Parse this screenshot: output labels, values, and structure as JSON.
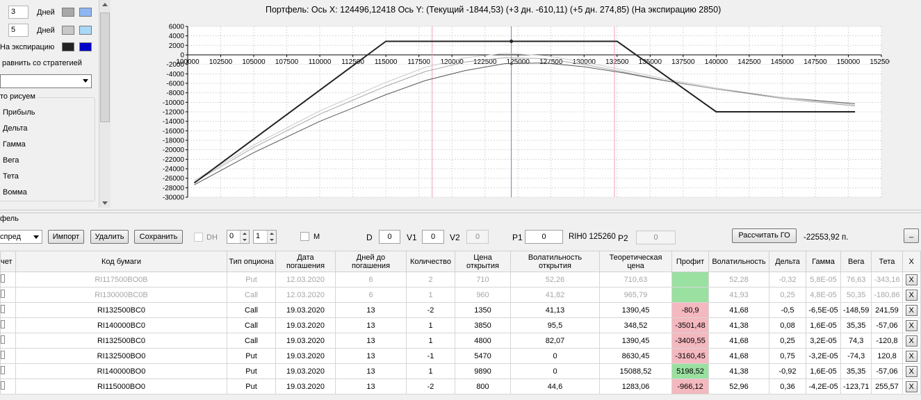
{
  "left_panel": {
    "rows": [
      {
        "value": "3",
        "label": "Дней",
        "swatch1": "#a8a8a8",
        "swatch2": "#8fb6f2"
      },
      {
        "value": "5",
        "label": "Дней",
        "swatch1": "#c8c8c8",
        "swatch2": "#a9d8f8"
      }
    ],
    "expiry_label": "На экспирацию",
    "expiry_swatch1": "#222222",
    "expiry_swatch2": "#0000c8",
    "compare_label": "равнить со стратегией",
    "group_title": "то рисуем",
    "draw_items": [
      "Прибыль",
      "Дельта",
      "Гамма",
      "Вега",
      "Тета",
      "Вомма"
    ]
  },
  "chart": {
    "title": "Портфель: Ось X: 124496,12418 Ось Y:  (Текущий -1844,53)  (+3 дн. -610,11)  (+5 дн. 274,85)  (На экспирацию 2850)"
  },
  "chart_data": {
    "type": "line",
    "title": "Портфель: Ось X: 124496,12418 Ось Y:  (Текущий -1844,53)  (+3 дн. -610,11)  (+5 дн. 274,85)  (На экспирацию 2850)",
    "xlim": [
      100000,
      152500
    ],
    "ylim": [
      -30000,
      6000
    ],
    "x_ticks": [
      "100000",
      "102500",
      "105000",
      "107500",
      "110000",
      "112500",
      "115000",
      "117500",
      "120000",
      "122500",
      "125000",
      "127500",
      "130000",
      "132500",
      "135000",
      "137500",
      "140000",
      "142500",
      "145000",
      "147500",
      "150000",
      "152500"
    ],
    "y_ticks": [
      "6000",
      "4000",
      "2000",
      "0",
      "-2000",
      "-4000",
      "-6000",
      "-8000",
      "-10000",
      "-12000",
      "-14000",
      "-16000",
      "-18000",
      "-20000",
      "-22000",
      "-24000",
      "-26000",
      "-28000",
      "-30000"
    ],
    "grid": true,
    "vertical_lines": [
      {
        "x": 118500,
        "color": "#f0a0b0"
      },
      {
        "x": 124496,
        "color": "#7080a8"
      },
      {
        "x": 132300,
        "color": "#f0a0b0"
      }
    ],
    "series": [
      {
        "color": "#222222",
        "width": 2,
        "x": [
          100500,
          115000,
          132500,
          140000,
          150500
        ],
        "y": [
          -27000,
          2850,
          2850,
          -12000,
          -12000
        ]
      },
      {
        "color": "#c8c8c8",
        "width": 1,
        "x": [
          100500,
          105000,
          110000,
          115000,
          118000,
          121000,
          124000,
          127000,
          130000,
          133000,
          136000,
          140000,
          145000,
          150500
        ],
        "y": [
          -26500,
          -19000,
          -11800,
          -5800,
          -2600,
          -600,
          300,
          -150,
          -1500,
          -3200,
          -5000,
          -7000,
          -9000,
          -10600
        ]
      },
      {
        "color": "#a8a8a8",
        "width": 1,
        "x": [
          100500,
          105000,
          110000,
          115000,
          118000,
          121000,
          124000,
          127000,
          130000,
          133000,
          136000,
          140000,
          145000,
          150500
        ],
        "y": [
          -26800,
          -19500,
          -12500,
          -6600,
          -3500,
          -1500,
          -600,
          -800,
          -2000,
          -3600,
          -5300,
          -7200,
          -9200,
          -10800
        ]
      },
      {
        "color": "#555555",
        "width": 1,
        "x": [
          100500,
          105000,
          110000,
          115000,
          118000,
          121000,
          124000,
          127000,
          130000,
          133000,
          136000,
          140000,
          145000,
          150500
        ],
        "y": [
          -27400,
          -20600,
          -14000,
          -8400,
          -5400,
          -3300,
          -1850,
          -1700,
          -2500,
          -3800,
          -5400,
          -7200,
          -9000,
          -10300
        ]
      }
    ]
  },
  "toolbar": {
    "tab_label": "фель",
    "strategy_value": "спред",
    "import_label": "Импорт",
    "delete_label": "Удалить",
    "save_label": "Сохранить",
    "dh_label": "DH",
    "spin1": "0",
    "spin2": "1",
    "m_label": "M",
    "d_label": "D",
    "d_value": "0",
    "v1_label": "V1",
    "v1_value": "0",
    "v2_label": "V2",
    "v2_value": "0",
    "p1_label": "P1",
    "p1_value": "0",
    "instrument_label": "RIH0 125260",
    "p2_label": "P2",
    "p2_value": "0",
    "calc_label": "Рассчитать ГО",
    "go_value": "-22553,92 п.",
    "collapse_label": "_"
  },
  "table": {
    "columns": [
      "чет",
      "Код бумаги",
      "Тип опциона",
      "Дата погашения",
      "Дней до погашения",
      "Количество",
      "Цена открытия",
      "Волатильность открытия",
      "Теоретическая цена",
      "Профит",
      "Волатильность",
      "Дельта",
      "Гамма",
      "Вега",
      "Тета",
      "X"
    ],
    "rows": [
      {
        "dim": true,
        "code": "RI117500BO0B",
        "type": "Put",
        "date": "12.03.2020",
        "days": "6",
        "qty": "2",
        "open": "710",
        "vol_open": "52,26",
        "theo": "710,63",
        "profit": "",
        "profit_state": "pos",
        "vol": "52,28",
        "delta": "-0,32",
        "gamma": "5,8E-05",
        "vega": "76,63",
        "theta": "-343,16"
      },
      {
        "dim": true,
        "code": "RI130000BC0B",
        "type": "Call",
        "date": "12.03.2020",
        "days": "6",
        "qty": "1",
        "open": "960",
        "vol_open": "41,82",
        "theo": "965,79",
        "profit": "",
        "profit_state": "pos",
        "vol": "41,93",
        "delta": "0,25",
        "gamma": "4,8E-05",
        "vega": "50,35",
        "theta": "-180,86"
      },
      {
        "dim": false,
        "code": "RI132500BC0",
        "type": "Call",
        "date": "19.03.2020",
        "days": "13",
        "qty": "-2",
        "open": "1350",
        "vol_open": "41,13",
        "theo": "1390,45",
        "profit": "-80,9",
        "profit_state": "neg",
        "vol": "41,68",
        "delta": "-0,5",
        "gamma": "-6,5E-05",
        "vega": "-148,59",
        "theta": "241,59"
      },
      {
        "dim": false,
        "code": "RI140000BC0",
        "type": "Call",
        "date": "19.03.2020",
        "days": "13",
        "qty": "1",
        "open": "3850",
        "vol_open": "95,5",
        "theo": "348,52",
        "profit": "-3501,48",
        "profit_state": "neg",
        "vol": "41,38",
        "delta": "0,08",
        "gamma": "1,6E-05",
        "vega": "35,35",
        "theta": "-57,06"
      },
      {
        "dim": false,
        "code": "RI132500BC0",
        "type": "Call",
        "date": "19.03.2020",
        "days": "13",
        "qty": "1",
        "open": "4800",
        "vol_open": "82,07",
        "theo": "1390,45",
        "profit": "-3409,55",
        "profit_state": "neg",
        "vol": "41,68",
        "delta": "0,25",
        "gamma": "3,2E-05",
        "vega": "74,3",
        "theta": "-120,8"
      },
      {
        "dim": false,
        "code": "RI132500BO0",
        "type": "Put",
        "date": "19.03.2020",
        "days": "13",
        "qty": "-1",
        "open": "5470",
        "vol_open": "0",
        "theo": "8630,45",
        "profit": "-3160,45",
        "profit_state": "neg",
        "vol": "41,68",
        "delta": "0,75",
        "gamma": "-3,2E-05",
        "vega": "-74,3",
        "theta": "120,8"
      },
      {
        "dim": false,
        "code": "RI140000BO0",
        "type": "Put",
        "date": "19.03.2020",
        "days": "13",
        "qty": "1",
        "open": "9890",
        "vol_open": "0",
        "theo": "15088,52",
        "profit": "5198,52",
        "profit_state": "pos",
        "vol": "41,38",
        "delta": "-0,92",
        "gamma": "1,6E-05",
        "vega": "35,35",
        "theta": "-57,06"
      },
      {
        "dim": false,
        "code": "RI115000BO0",
        "type": "Put",
        "date": "19.03.2020",
        "days": "13",
        "qty": "-2",
        "open": "800",
        "vol_open": "44,6",
        "theo": "1283,06",
        "profit": "-966,12",
        "profit_state": "neg",
        "vol": "52,96",
        "delta": "0,36",
        "gamma": "-4,2E-05",
        "vega": "-123,71",
        "theta": "255,57"
      }
    ],
    "x_label": "X"
  }
}
